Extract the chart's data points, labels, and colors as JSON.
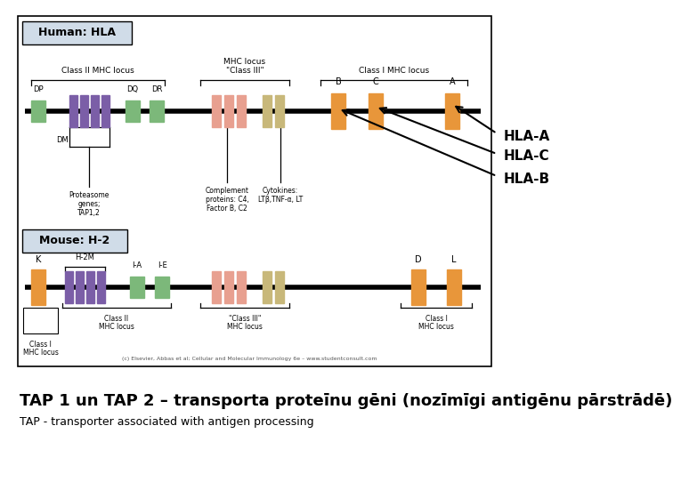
{
  "background_color": "#ffffff",
  "main_text": "TAP 1 un TAP 2 – transporta proteīnu gēni (nozīmīgi antigēnu pārstrādē)",
  "main_text_fontsize": 13,
  "main_text_fontweight": "bold",
  "sub_text": "TAP - transporter associated with antigen processing",
  "sub_text_fontsize": 9,
  "colors": {
    "orange": "#E8963A",
    "purple": "#7B5EA7",
    "green": "#7CB87A",
    "salmon": "#E8A090",
    "tan": "#C8B87A",
    "white": "#FFFFFF",
    "black": "#000000",
    "gray": "#888888"
  }
}
